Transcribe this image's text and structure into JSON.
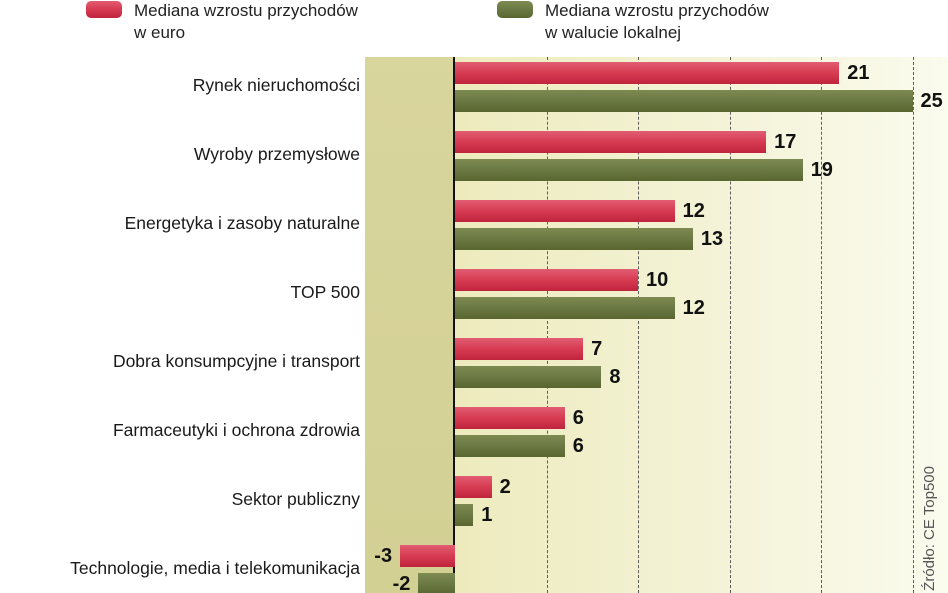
{
  "legend": {
    "euro": {
      "line1": "Mediana wzrostu przychodów",
      "line2": "w euro"
    },
    "local": {
      "line1": "Mediana wzrostu przychodów",
      "line2": "w walucie lokalnej"
    }
  },
  "colors": {
    "euro": "#d73c53",
    "local": "#6b7944",
    "negative_strip": "#d6d39a",
    "plot_gradient_start": "#edebbd",
    "plot_gradient_end": "#fbfbee"
  },
  "source": "Źródło: CE Top500",
  "chart_data": {
    "type": "bar",
    "orientation": "horizontal",
    "title": "",
    "categories": [
      "Rynek nieruchomości",
      "Wyroby przemysłowe",
      "Energetyka i zasoby naturalne",
      "TOP 500",
      "Dobra konsumpcyjne i transport",
      "Farmaceutyki i ochrona zdrowia",
      "Sektor publiczny",
      "Technologie, media i telekomunikacja"
    ],
    "series": [
      {
        "name": "Mediana wzrostu przychodów w euro",
        "color": "#d73c53",
        "values": [
          21,
          17,
          12,
          10,
          7,
          6,
          2,
          -3
        ]
      },
      {
        "name": "Mediana wzrostu przychodów w walucie lokalnej",
        "color": "#6b7944",
        "values": [
          25,
          19,
          13,
          12,
          8,
          6,
          1,
          -2
        ]
      }
    ],
    "xlim": [
      -5,
      27
    ],
    "gridline_values": [
      5,
      10,
      15,
      20,
      25
    ],
    "grid": "dashed-vertical",
    "legend_position": "top",
    "value_labels": "shown-bold-at-bar-end"
  }
}
